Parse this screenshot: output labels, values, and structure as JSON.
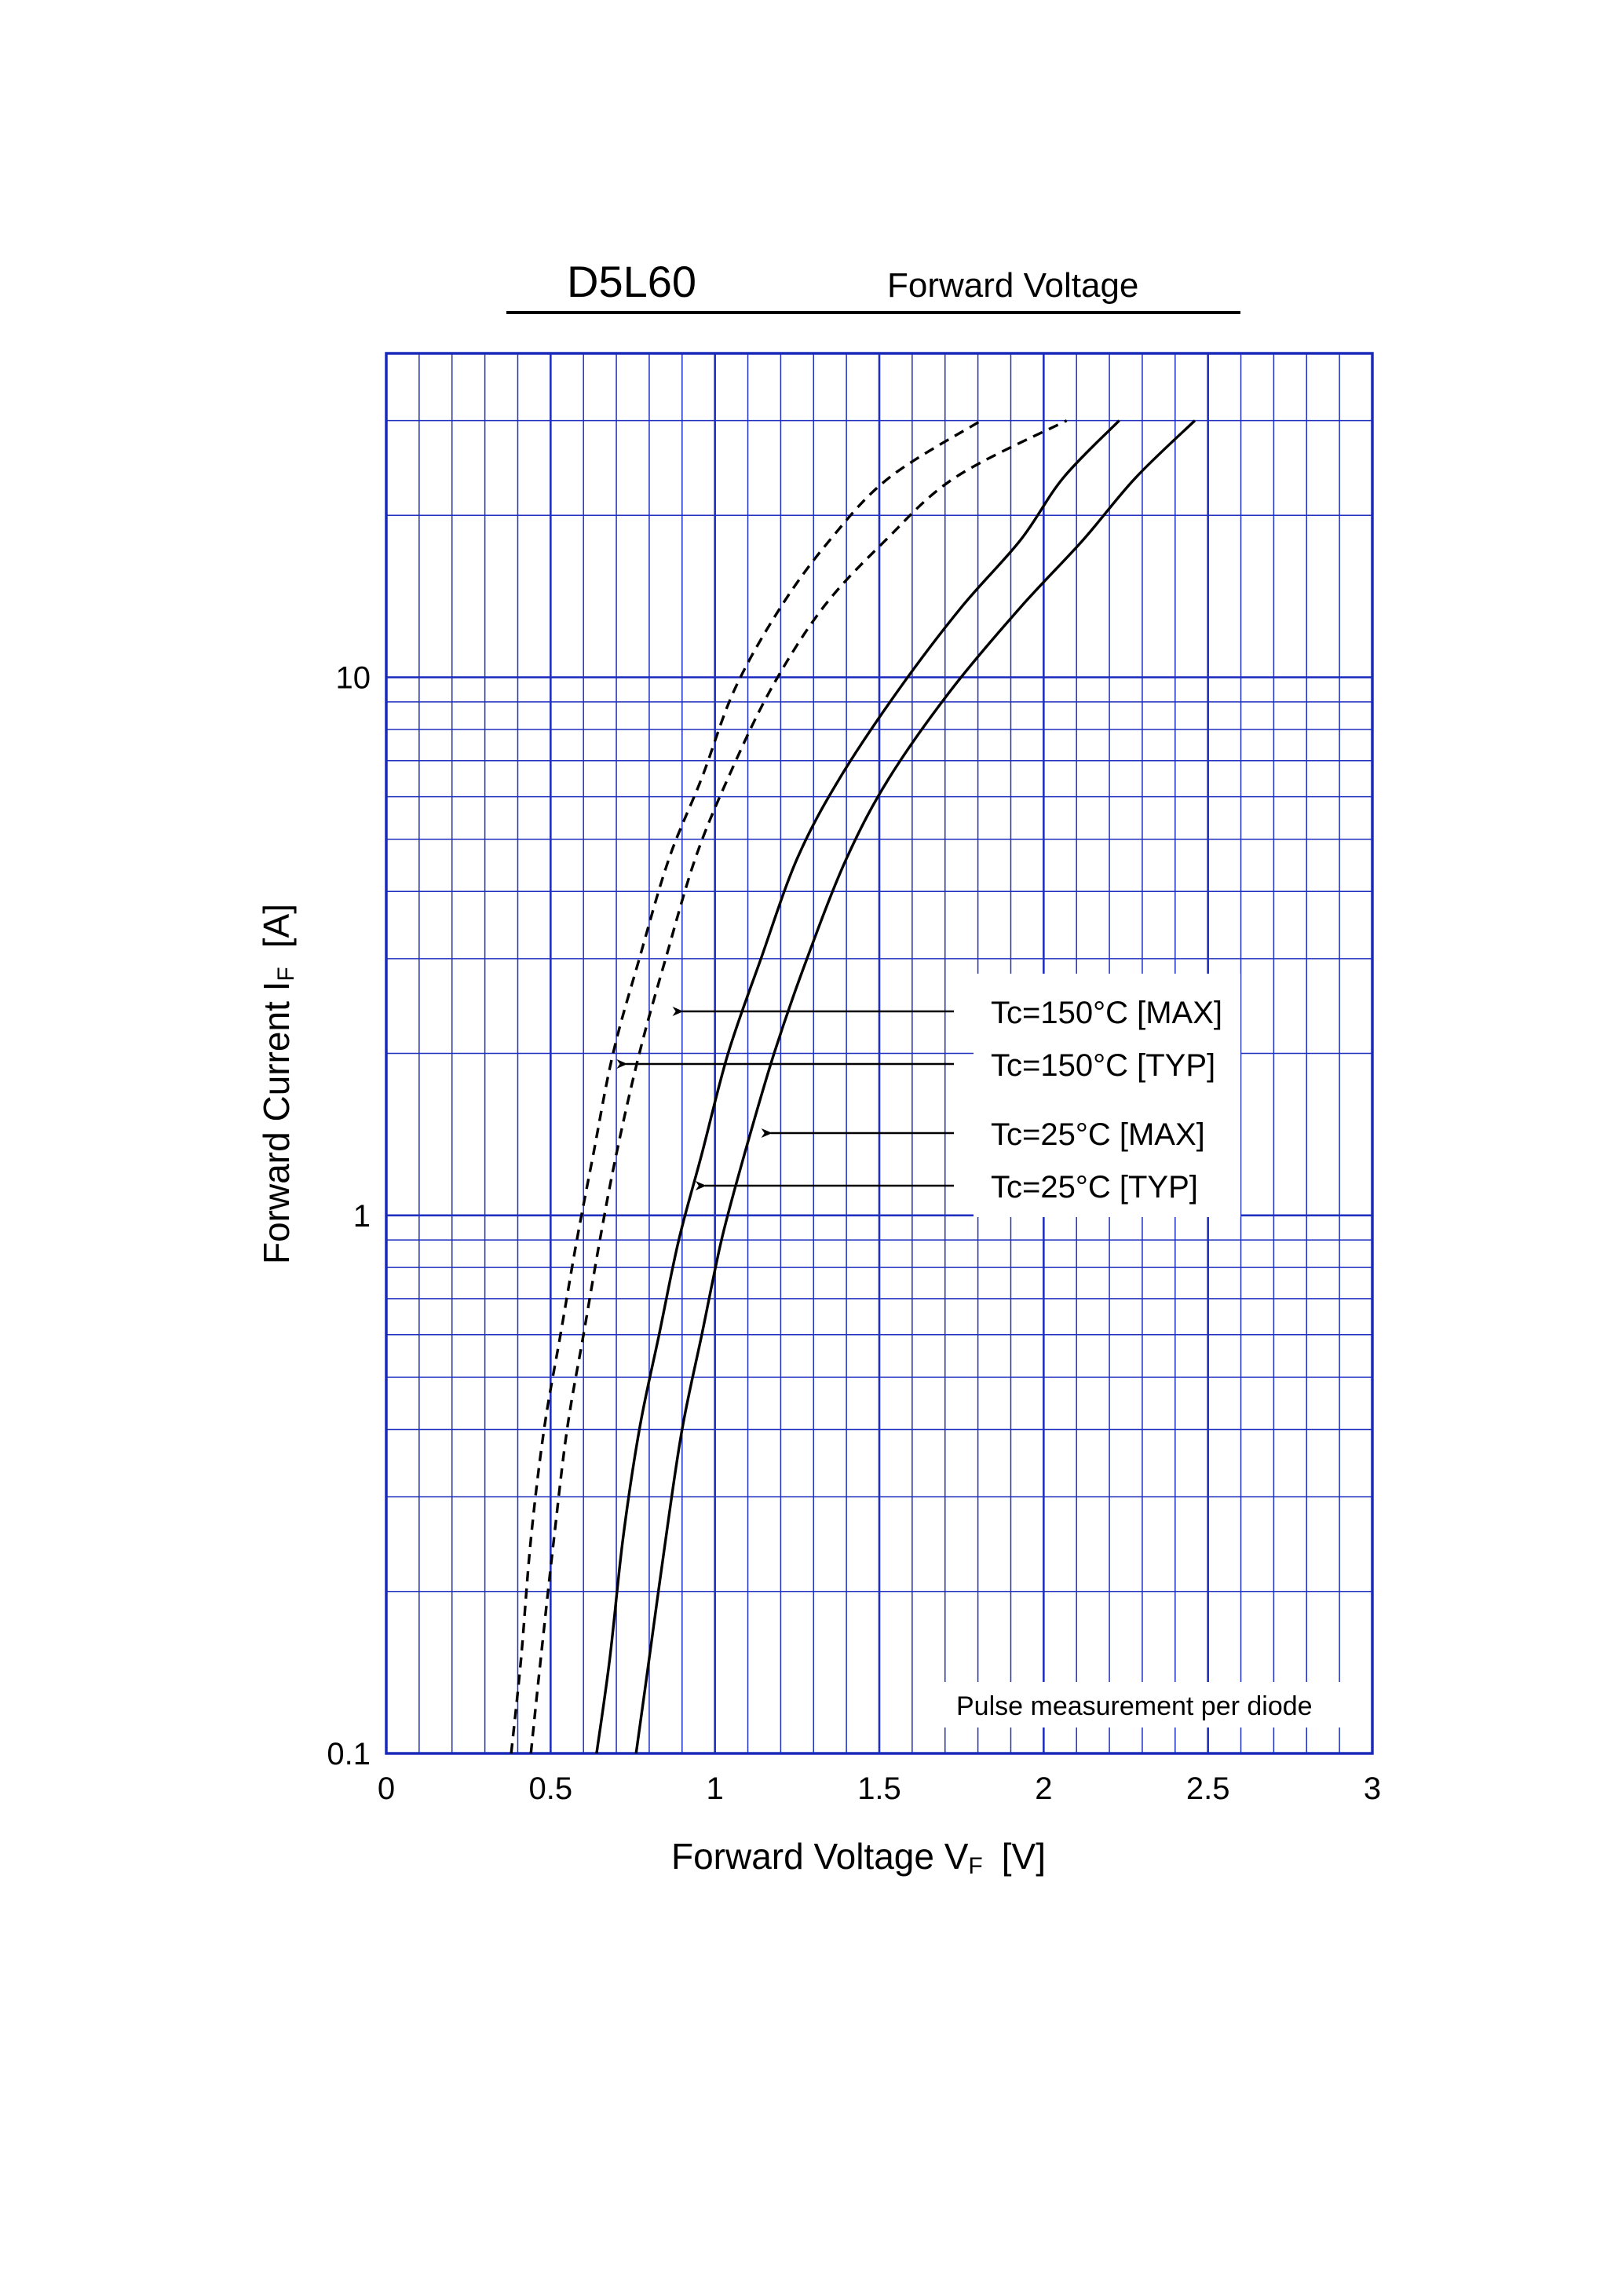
{
  "header": {
    "part_number": "D5L60",
    "chart_name": "Forward Voltage"
  },
  "chart_data": {
    "type": "line",
    "x_scale": "linear",
    "y_scale": "log",
    "xlim": [
      0,
      3
    ],
    "ylim": [
      0.1,
      40
    ],
    "grid": true,
    "x_ticks": [
      {
        "value": 0,
        "label": "0"
      },
      {
        "value": 0.5,
        "label": "0.5"
      },
      {
        "value": 1,
        "label": "1"
      },
      {
        "value": 1.5,
        "label": "1.5"
      },
      {
        "value": 2,
        "label": "2"
      },
      {
        "value": 2.5,
        "label": "2.5"
      },
      {
        "value": 3,
        "label": "3"
      }
    ],
    "y_ticks": [
      {
        "value": 0.1,
        "label": "0.1"
      },
      {
        "value": 1,
        "label": "1"
      },
      {
        "value": 10,
        "label": "10"
      }
    ],
    "xlabel": {
      "main": "Forward Voltage  V",
      "sub": "F",
      "unit": "[V]"
    },
    "ylabel": {
      "main": "Forward Current  I",
      "sub": "F",
      "unit": "[A]"
    },
    "note": "Pulse measurement per diode",
    "series": [
      {
        "name": "Tc=150°C [MAX]",
        "style": "dashed",
        "points": [
          [
            0.44,
            0.1
          ],
          [
            0.47,
            0.15
          ],
          [
            0.51,
            0.25
          ],
          [
            0.55,
            0.4
          ],
          [
            0.6,
            0.6
          ],
          [
            0.65,
            0.9
          ],
          [
            0.7,
            1.3
          ],
          [
            0.77,
            2
          ],
          [
            0.85,
            3
          ],
          [
            0.94,
            4.6
          ],
          [
            1.04,
            6.5
          ],
          [
            1.17,
            9.5
          ],
          [
            1.33,
            13.5
          ],
          [
            1.52,
            18
          ],
          [
            1.73,
            23.5
          ],
          [
            2.07,
            30
          ]
        ]
      },
      {
        "name": "Tc=150°C [TYP]",
        "style": "dashed",
        "points": [
          [
            0.38,
            0.1
          ],
          [
            0.41,
            0.15
          ],
          [
            0.44,
            0.25
          ],
          [
            0.48,
            0.4
          ],
          [
            0.53,
            0.6
          ],
          [
            0.58,
            0.9
          ],
          [
            0.63,
            1.3
          ],
          [
            0.69,
            2
          ],
          [
            0.77,
            3
          ],
          [
            0.86,
            4.6
          ],
          [
            0.96,
            6.5
          ],
          [
            1.06,
            9.5
          ],
          [
            1.2,
            13.5
          ],
          [
            1.35,
            18
          ],
          [
            1.53,
            23.5
          ],
          [
            1.81,
            30
          ]
        ]
      },
      {
        "name": "Tc=25°C [MAX]",
        "style": "solid",
        "points": [
          [
            0.76,
            0.1
          ],
          [
            0.8,
            0.15
          ],
          [
            0.85,
            0.25
          ],
          [
            0.9,
            0.4
          ],
          [
            0.96,
            0.6
          ],
          [
            1.02,
            0.9
          ],
          [
            1.09,
            1.3
          ],
          [
            1.18,
            2
          ],
          [
            1.28,
            3
          ],
          [
            1.4,
            4.6
          ],
          [
            1.53,
            6.5
          ],
          [
            1.72,
            9.5
          ],
          [
            1.93,
            13.5
          ],
          [
            2.12,
            18
          ],
          [
            2.28,
            23.5
          ],
          [
            2.46,
            30
          ]
        ]
      },
      {
        "name": "Tc=25°C [TYP]",
        "style": "solid",
        "points": [
          [
            0.64,
            0.1
          ],
          [
            0.68,
            0.15
          ],
          [
            0.72,
            0.25
          ],
          [
            0.77,
            0.4
          ],
          [
            0.83,
            0.6
          ],
          [
            0.89,
            0.9
          ],
          [
            0.96,
            1.3
          ],
          [
            1.04,
            2
          ],
          [
            1.14,
            3
          ],
          [
            1.25,
            4.6
          ],
          [
            1.38,
            6.5
          ],
          [
            1.56,
            9.5
          ],
          [
            1.75,
            13.5
          ],
          [
            1.93,
            18
          ],
          [
            2.06,
            23.5
          ],
          [
            2.23,
            30
          ]
        ]
      }
    ],
    "annotations": [
      {
        "label": "Tc=150°C [MAX]",
        "series": 0,
        "at": [
          0.89,
          2.65
        ]
      },
      {
        "label": "Tc=150°C [TYP]",
        "series": 1,
        "at": [
          0.72,
          2.1
        ]
      },
      {
        "label": "Tc=25°C [MAX]",
        "series": 2,
        "at": [
          1.16,
          1.55
        ]
      },
      {
        "label": "Tc=25°C [TYP]",
        "series": 3,
        "at": [
          0.96,
          1.22
        ]
      }
    ],
    "colors": {
      "grid": "#1f2fbf",
      "frame": "#1a2ab8",
      "curve": "#000000"
    }
  }
}
